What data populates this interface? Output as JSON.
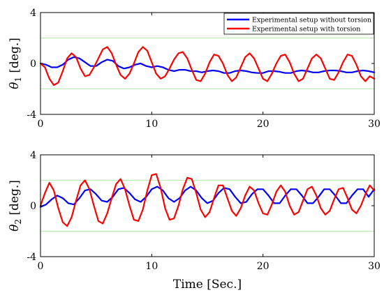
{
  "chart_data": [
    {
      "type": "line",
      "ylabel": "θ1 [deg.]",
      "ylabel_symbol": "θ",
      "ylabel_sub": "1",
      "ylabel_unit": "[deg.]",
      "xlabel": "",
      "xlim": [
        0,
        30
      ],
      "ylim": [
        -4,
        4
      ],
      "xticks": [
        "0",
        "10",
        "20",
        "30"
      ],
      "yticks": [
        "-4",
        "0",
        "4"
      ],
      "reference_lines": [
        2,
        -2
      ],
      "legend_placement": "top-right",
      "series": [
        {
          "name": "Experimental setup without torsion",
          "color": "#0000ff",
          "x": [
            0,
            0.5,
            1,
            1.5,
            2,
            2.5,
            3,
            3.5,
            4,
            4.5,
            5,
            5.5,
            6,
            6.5,
            7,
            7.5,
            8,
            8.5,
            9,
            9.5,
            10,
            10.5,
            11,
            11.5,
            12,
            12.5,
            13,
            13.5,
            14,
            14.5,
            15,
            15.5,
            16,
            16.5,
            17,
            17.5,
            18,
            18.5,
            19,
            19.5,
            20,
            20.5,
            21,
            21.5,
            22,
            22.5,
            23,
            23.5,
            24,
            24.5,
            25,
            25.5,
            26,
            26.5,
            27,
            27.5,
            28,
            28.5,
            29,
            29.5,
            30
          ],
          "y": [
            0,
            -0.1,
            -0.3,
            -0.3,
            -0.1,
            0.3,
            0.5,
            0.4,
            0.1,
            -0.2,
            -0.2,
            0.1,
            0.3,
            0.2,
            -0.2,
            -0.4,
            -0.3,
            -0.1,
            0,
            -0.2,
            -0.3,
            -0.2,
            -0.3,
            -0.5,
            -0.6,
            -0.5,
            -0.5,
            -0.6,
            -0.6,
            -0.7,
            -0.6,
            -0.55,
            -0.6,
            -0.75,
            -0.75,
            -0.6,
            -0.55,
            -0.6,
            -0.7,
            -0.75,
            -0.75,
            -0.6,
            -0.6,
            -0.65,
            -0.75,
            -0.75,
            -0.6,
            -0.55,
            -0.6,
            -0.7,
            -0.7,
            -0.6,
            -0.55,
            -0.55,
            -0.6,
            -0.7,
            -0.7,
            -0.6,
            -0.55,
            -0.6,
            -0.7
          ]
        },
        {
          "name": "Experimental setup with torsion",
          "color": "#ff0000",
          "x": [
            0,
            0.4,
            0.8,
            1.2,
            1.6,
            2.0,
            2.4,
            2.8,
            3.2,
            3.6,
            4.0,
            4.4,
            4.8,
            5.2,
            5.6,
            6.0,
            6.4,
            6.8,
            7.2,
            7.6,
            8.0,
            8.4,
            8.8,
            9.2,
            9.6,
            10.0,
            10.4,
            10.8,
            11.2,
            11.6,
            12.0,
            12.4,
            12.8,
            13.2,
            13.6,
            14.0,
            14.4,
            14.8,
            15.2,
            15.6,
            16.0,
            16.4,
            16.8,
            17.2,
            17.6,
            18.0,
            18.4,
            18.8,
            19.2,
            19.6,
            20.0,
            20.4,
            20.8,
            21.2,
            21.6,
            22.0,
            22.4,
            22.8,
            23.2,
            23.6,
            24.0,
            24.4,
            24.8,
            25.2,
            25.6,
            26.0,
            26.4,
            26.8,
            27.2,
            27.6,
            28.0,
            28.4,
            28.8,
            29.2,
            29.6,
            30.0
          ],
          "y": [
            0,
            -0.3,
            -1.2,
            -1.7,
            -1.5,
            -0.6,
            0.4,
            0.8,
            0.5,
            -0.4,
            -1.0,
            -0.9,
            -0.3,
            0.4,
            1.1,
            1.3,
            0.8,
            -0.1,
            -0.9,
            -1.2,
            -0.8,
            0,
            0.9,
            1.3,
            1.0,
            0.1,
            -0.8,
            -1.2,
            -1.0,
            -0.4,
            0.3,
            0.8,
            0.9,
            0.4,
            -0.5,
            -1.3,
            -1.4,
            -0.8,
            0.1,
            0.7,
            0.6,
            0,
            -0.9,
            -1.4,
            -1.1,
            -0.3,
            0.5,
            0.8,
            0.4,
            -0.4,
            -1.2,
            -1.4,
            -0.8,
            0,
            0.6,
            0.7,
            0.1,
            -0.8,
            -1.4,
            -1.2,
            -0.4,
            0.4,
            0.7,
            0.4,
            -0.4,
            -1.2,
            -1.3,
            -0.7,
            0.1,
            0.7,
            0.6,
            -0.1,
            -1.0,
            -1.4,
            -1.0,
            -1.2
          ]
        }
      ]
    },
    {
      "type": "line",
      "ylabel": "θ2 [deg.]",
      "ylabel_symbol": "θ",
      "ylabel_sub": "2",
      "ylabel_unit": "[deg.]",
      "xlabel": "Time [Sec.]",
      "xlim": [
        0,
        30
      ],
      "ylim": [
        -4,
        4
      ],
      "xticks": [
        "0",
        "10",
        "20",
        "30"
      ],
      "yticks": [
        "-4",
        "0",
        "4"
      ],
      "reference_lines": [
        2,
        -2
      ],
      "series": [
        {
          "name": "Experimental setup without torsion",
          "color": "#0000ff",
          "x": [
            0,
            0.5,
            1,
            1.5,
            2,
            2.5,
            3,
            3.5,
            4,
            4.5,
            5,
            5.5,
            6,
            6.5,
            7,
            7.5,
            8,
            8.5,
            9,
            9.5,
            10,
            10.5,
            11,
            11.5,
            12,
            12.5,
            13,
            13.5,
            14,
            14.5,
            15,
            15.5,
            16,
            16.5,
            17,
            17.5,
            18,
            18.5,
            19,
            19.5,
            20,
            20.5,
            21,
            21.5,
            22,
            22.5,
            23,
            23.5,
            24,
            24.5,
            25,
            25.5,
            26,
            26.5,
            27,
            27.5,
            28,
            28.5,
            29,
            29.5,
            30
          ],
          "y": [
            -0.1,
            0.1,
            0.5,
            0.8,
            0.6,
            0.2,
            0.1,
            0.6,
            1.2,
            1.3,
            0.9,
            0.4,
            0.3,
            0.7,
            1.3,
            1.4,
            1.0,
            0.5,
            0.3,
            0.7,
            1.3,
            1.5,
            1.2,
            0.6,
            0.3,
            0.6,
            1.2,
            1.5,
            1.2,
            0.6,
            0.2,
            0.4,
            1.0,
            1.4,
            1.3,
            0.7,
            0.2,
            0.3,
            0.9,
            1.3,
            1.3,
            0.8,
            0.2,
            0.2,
            0.8,
            1.3,
            1.3,
            0.8,
            0.2,
            0.2,
            0.7,
            1.3,
            1.3,
            0.8,
            0.2,
            0.2,
            0.8,
            1.3,
            1.3,
            0.7,
            1.3
          ]
        },
        {
          "name": "Experimental setup with torsion",
          "color": "#ff0000",
          "x": [
            0,
            0.4,
            0.8,
            1.2,
            1.6,
            2.0,
            2.4,
            2.8,
            3.2,
            3.6,
            4.0,
            4.4,
            4.8,
            5.2,
            5.6,
            6.0,
            6.4,
            6.8,
            7.2,
            7.6,
            8.0,
            8.4,
            8.8,
            9.2,
            9.6,
            10.0,
            10.4,
            10.8,
            11.2,
            11.6,
            12.0,
            12.4,
            12.8,
            13.2,
            13.6,
            14.0,
            14.4,
            14.8,
            15.2,
            15.6,
            16.0,
            16.4,
            16.8,
            17.2,
            17.6,
            18.0,
            18.4,
            18.8,
            19.2,
            19.6,
            20.0,
            20.4,
            20.8,
            21.2,
            21.6,
            22.0,
            22.4,
            22.8,
            23.2,
            23.6,
            24.0,
            24.4,
            24.8,
            25.2,
            25.6,
            26.0,
            26.4,
            26.8,
            27.2,
            27.6,
            28.0,
            28.4,
            28.8,
            29.2,
            29.6,
            30.0
          ],
          "y": [
            0,
            1.0,
            1.8,
            1.2,
            -0.2,
            -1.3,
            -1.6,
            -0.9,
            0.4,
            1.6,
            2.0,
            1.3,
            0,
            -1.2,
            -1.4,
            -0.6,
            0.6,
            1.7,
            2.1,
            1.3,
            0,
            -1.1,
            -1.2,
            -0.3,
            1.2,
            2.4,
            2.5,
            1.4,
            -0.2,
            -1.1,
            -1.0,
            0,
            1.3,
            2.2,
            2.1,
            1.0,
            -0.3,
            -0.9,
            -0.5,
            0.6,
            1.6,
            1.6,
            0.6,
            -0.4,
            -0.8,
            -0.2,
            0.8,
            1.5,
            1.2,
            0.2,
            -0.6,
            -0.7,
            0.1,
            1.1,
            1.6,
            1.1,
            0,
            -0.7,
            -0.5,
            0.4,
            1.3,
            1.5,
            0.8,
            -0.2,
            -0.7,
            -0.4,
            0.5,
            1.3,
            1.4,
            0.6,
            -0.3,
            -0.6,
            0,
            0.9,
            1.6,
            1.2
          ]
        }
      ]
    }
  ]
}
